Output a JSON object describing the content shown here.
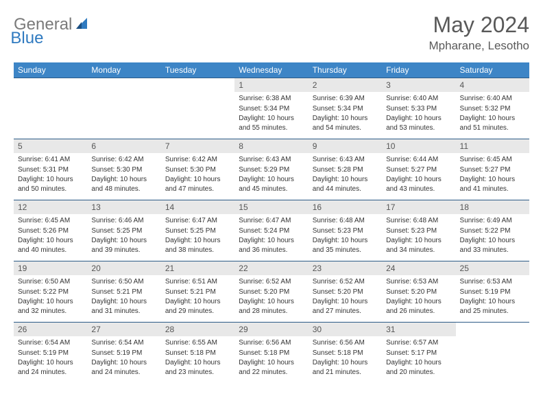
{
  "logo": {
    "part1": "General",
    "part2": "Blue"
  },
  "title": "May 2024",
  "location": "Mpharane, Lesotho",
  "colors": {
    "header_bg": "#3d85c6",
    "header_text": "#ffffff",
    "daynum_bg": "#e8e8e8",
    "daynum_border": "#2b5a86",
    "body_text": "#333333",
    "title_text": "#595959",
    "logo_gray": "#7a7a7a",
    "logo_blue": "#2f7ac0"
  },
  "day_names": [
    "Sunday",
    "Monday",
    "Tuesday",
    "Wednesday",
    "Thursday",
    "Friday",
    "Saturday"
  ],
  "weeks": [
    [
      null,
      null,
      null,
      {
        "n": "1",
        "sr": "6:38 AM",
        "ss": "5:34 PM",
        "dl": "10 hours and 55 minutes."
      },
      {
        "n": "2",
        "sr": "6:39 AM",
        "ss": "5:34 PM",
        "dl": "10 hours and 54 minutes."
      },
      {
        "n": "3",
        "sr": "6:40 AM",
        "ss": "5:33 PM",
        "dl": "10 hours and 53 minutes."
      },
      {
        "n": "4",
        "sr": "6:40 AM",
        "ss": "5:32 PM",
        "dl": "10 hours and 51 minutes."
      }
    ],
    [
      {
        "n": "5",
        "sr": "6:41 AM",
        "ss": "5:31 PM",
        "dl": "10 hours and 50 minutes."
      },
      {
        "n": "6",
        "sr": "6:42 AM",
        "ss": "5:30 PM",
        "dl": "10 hours and 48 minutes."
      },
      {
        "n": "7",
        "sr": "6:42 AM",
        "ss": "5:30 PM",
        "dl": "10 hours and 47 minutes."
      },
      {
        "n": "8",
        "sr": "6:43 AM",
        "ss": "5:29 PM",
        "dl": "10 hours and 45 minutes."
      },
      {
        "n": "9",
        "sr": "6:43 AM",
        "ss": "5:28 PM",
        "dl": "10 hours and 44 minutes."
      },
      {
        "n": "10",
        "sr": "6:44 AM",
        "ss": "5:27 PM",
        "dl": "10 hours and 43 minutes."
      },
      {
        "n": "11",
        "sr": "6:45 AM",
        "ss": "5:27 PM",
        "dl": "10 hours and 41 minutes."
      }
    ],
    [
      {
        "n": "12",
        "sr": "6:45 AM",
        "ss": "5:26 PM",
        "dl": "10 hours and 40 minutes."
      },
      {
        "n": "13",
        "sr": "6:46 AM",
        "ss": "5:25 PM",
        "dl": "10 hours and 39 minutes."
      },
      {
        "n": "14",
        "sr": "6:47 AM",
        "ss": "5:25 PM",
        "dl": "10 hours and 38 minutes."
      },
      {
        "n": "15",
        "sr": "6:47 AM",
        "ss": "5:24 PM",
        "dl": "10 hours and 36 minutes."
      },
      {
        "n": "16",
        "sr": "6:48 AM",
        "ss": "5:23 PM",
        "dl": "10 hours and 35 minutes."
      },
      {
        "n": "17",
        "sr": "6:48 AM",
        "ss": "5:23 PM",
        "dl": "10 hours and 34 minutes."
      },
      {
        "n": "18",
        "sr": "6:49 AM",
        "ss": "5:22 PM",
        "dl": "10 hours and 33 minutes."
      }
    ],
    [
      {
        "n": "19",
        "sr": "6:50 AM",
        "ss": "5:22 PM",
        "dl": "10 hours and 32 minutes."
      },
      {
        "n": "20",
        "sr": "6:50 AM",
        "ss": "5:21 PM",
        "dl": "10 hours and 31 minutes."
      },
      {
        "n": "21",
        "sr": "6:51 AM",
        "ss": "5:21 PM",
        "dl": "10 hours and 29 minutes."
      },
      {
        "n": "22",
        "sr": "6:52 AM",
        "ss": "5:20 PM",
        "dl": "10 hours and 28 minutes."
      },
      {
        "n": "23",
        "sr": "6:52 AM",
        "ss": "5:20 PM",
        "dl": "10 hours and 27 minutes."
      },
      {
        "n": "24",
        "sr": "6:53 AM",
        "ss": "5:20 PM",
        "dl": "10 hours and 26 minutes."
      },
      {
        "n": "25",
        "sr": "6:53 AM",
        "ss": "5:19 PM",
        "dl": "10 hours and 25 minutes."
      }
    ],
    [
      {
        "n": "26",
        "sr": "6:54 AM",
        "ss": "5:19 PM",
        "dl": "10 hours and 24 minutes."
      },
      {
        "n": "27",
        "sr": "6:54 AM",
        "ss": "5:19 PM",
        "dl": "10 hours and 24 minutes."
      },
      {
        "n": "28",
        "sr": "6:55 AM",
        "ss": "5:18 PM",
        "dl": "10 hours and 23 minutes."
      },
      {
        "n": "29",
        "sr": "6:56 AM",
        "ss": "5:18 PM",
        "dl": "10 hours and 22 minutes."
      },
      {
        "n": "30",
        "sr": "6:56 AM",
        "ss": "5:18 PM",
        "dl": "10 hours and 21 minutes."
      },
      {
        "n": "31",
        "sr": "6:57 AM",
        "ss": "5:17 PM",
        "dl": "10 hours and 20 minutes."
      },
      null
    ]
  ],
  "labels": {
    "sunrise": "Sunrise:",
    "sunset": "Sunset:",
    "daylight": "Daylight:"
  }
}
